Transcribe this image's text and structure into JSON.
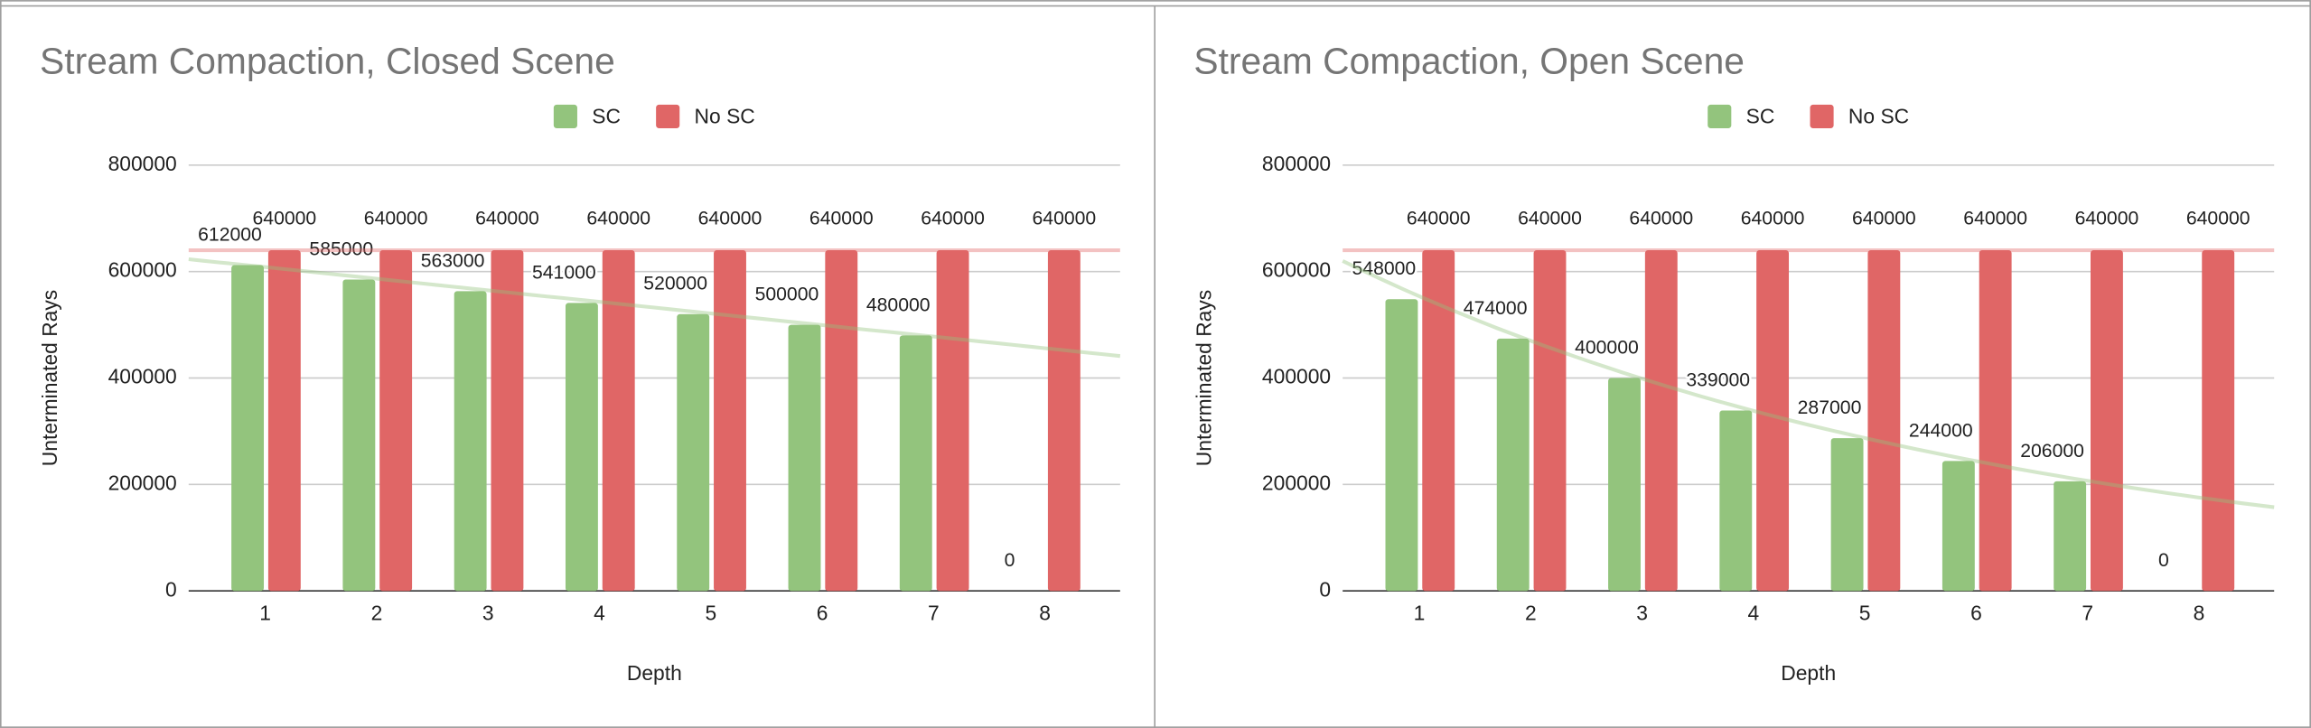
{
  "chart_data": [
    {
      "type": "bar",
      "title": "Stream Compaction, Closed Scene",
      "x_label": "Depth",
      "y_label": "Unterminated Rays",
      "categories": [
        "1",
        "2",
        "3",
        "4",
        "5",
        "6",
        "7",
        "8"
      ],
      "series": [
        {
          "name": "SC",
          "color": "#93c47d",
          "trendline": "linear",
          "values": [
            612000,
            585000,
            563000,
            541000,
            520000,
            500000,
            480000,
            0
          ]
        },
        {
          "name": "No SC",
          "color": "#e06666",
          "trendline": "linear",
          "values": [
            640000,
            640000,
            640000,
            640000,
            640000,
            640000,
            640000,
            640000
          ]
        }
      ],
      "ylim": [
        0,
        800000
      ],
      "yticks": [
        0,
        200000,
        400000,
        600000,
        800000
      ],
      "grid": true,
      "legend": "top"
    },
    {
      "type": "bar",
      "title": "Stream Compaction, Open Scene",
      "x_label": "Depth",
      "y_label": "Unterminated Rays",
      "categories": [
        "1",
        "2",
        "3",
        "4",
        "5",
        "6",
        "7",
        "8"
      ],
      "series": [
        {
          "name": "SC",
          "color": "#93c47d",
          "trendline": "exponential",
          "values": [
            548000,
            474000,
            400000,
            339000,
            287000,
            244000,
            206000,
            0
          ]
        },
        {
          "name": "No SC",
          "color": "#e06666",
          "trendline": "linear",
          "values": [
            640000,
            640000,
            640000,
            640000,
            640000,
            640000,
            640000,
            640000
          ]
        }
      ],
      "ylim": [
        0,
        800000
      ],
      "yticks": [
        0,
        200000,
        400000,
        600000,
        800000
      ],
      "grid": true,
      "legend": "top"
    }
  ]
}
